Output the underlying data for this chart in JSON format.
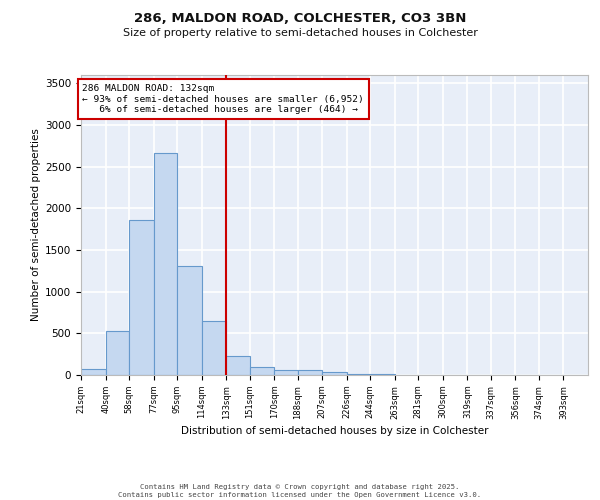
{
  "title_line1": "286, MALDON ROAD, COLCHESTER, CO3 3BN",
  "title_line2": "Size of property relative to semi-detached houses in Colchester",
  "xlabel": "Distribution of semi-detached houses by size in Colchester",
  "ylabel": "Number of semi-detached properties",
  "bin_labels": [
    "21sqm",
    "40sqm",
    "58sqm",
    "77sqm",
    "95sqm",
    "114sqm",
    "133sqm",
    "151sqm",
    "170sqm",
    "188sqm",
    "207sqm",
    "226sqm",
    "244sqm",
    "263sqm",
    "281sqm",
    "300sqm",
    "319sqm",
    "337sqm",
    "356sqm",
    "374sqm",
    "393sqm"
  ],
  "bin_edges": [
    21,
    40,
    58,
    77,
    95,
    114,
    133,
    151,
    170,
    188,
    207,
    226,
    244,
    263,
    281,
    300,
    319,
    337,
    356,
    374,
    393,
    412
  ],
  "values": [
    70,
    530,
    1860,
    2660,
    1310,
    650,
    230,
    95,
    60,
    55,
    35,
    10,
    10,
    0,
    0,
    0,
    0,
    0,
    0,
    0,
    0
  ],
  "bar_color": "#c5d8f0",
  "bar_edge_color": "#6699cc",
  "vline_x": 133,
  "vline_color": "#cc0000",
  "annotation_line1": "286 MALDON ROAD: 132sqm",
  "annotation_line2": "← 93% of semi-detached houses are smaller (6,952)",
  "annotation_line3": "   6% of semi-detached houses are larger (464) →",
  "annotation_box_color": "#cc0000",
  "ylim": [
    0,
    3600
  ],
  "yticks": [
    0,
    500,
    1000,
    1500,
    2000,
    2500,
    3000,
    3500
  ],
  "background_color": "#e8eef8",
  "grid_color": "#ffffff",
  "footer_line1": "Contains HM Land Registry data © Crown copyright and database right 2025.",
  "footer_line2": "Contains public sector information licensed under the Open Government Licence v3.0."
}
